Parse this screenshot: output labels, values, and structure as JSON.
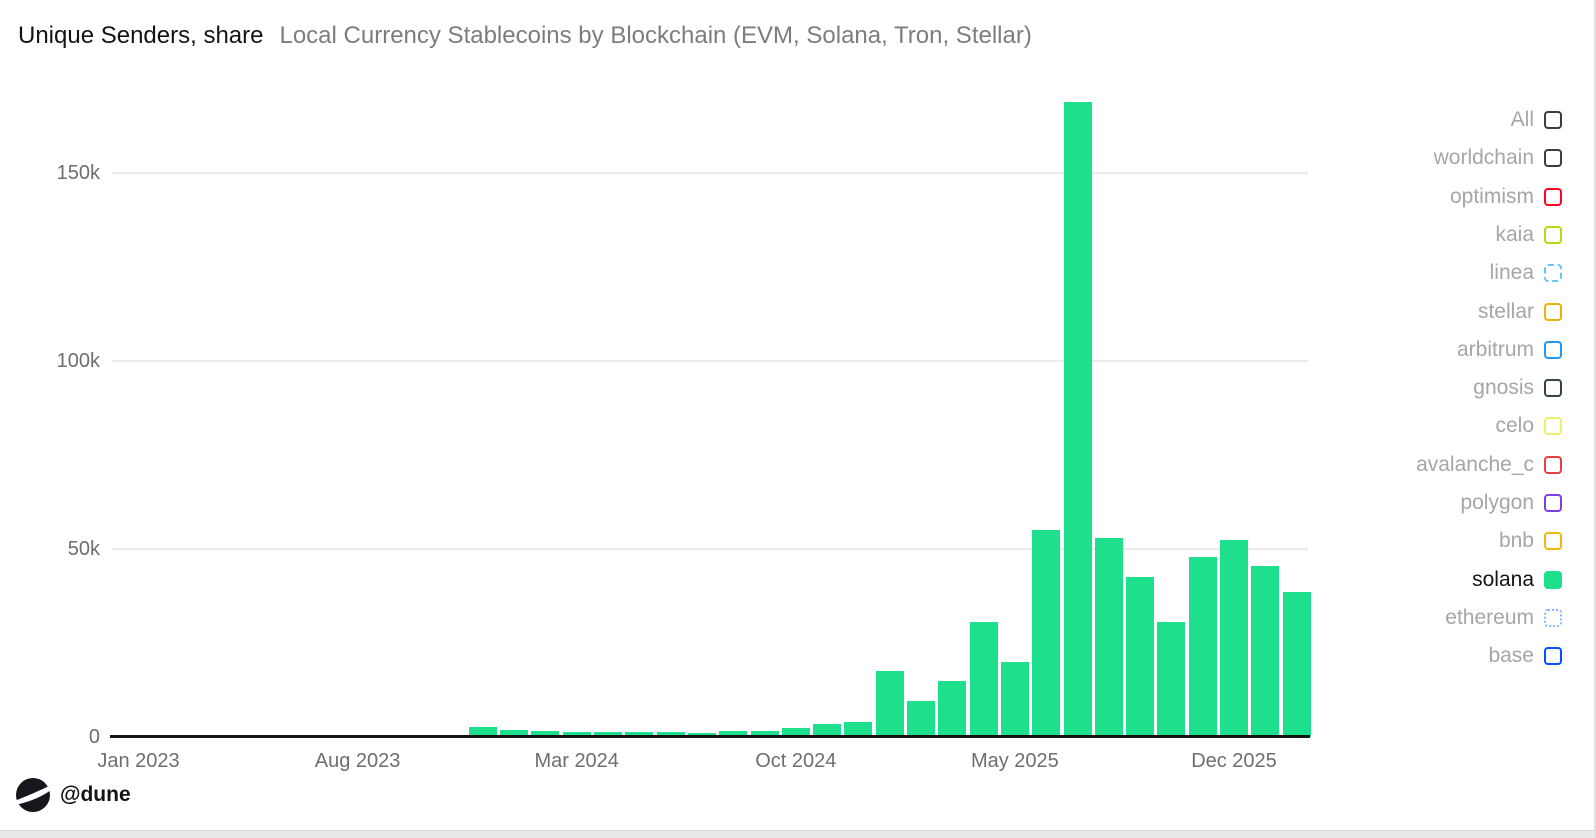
{
  "header": {
    "title": "Unique Senders, share",
    "subtitle": "Local Currency Stablecoins by Blockchain (EVM, Solana, Tron, Stellar)"
  },
  "footer": {
    "handle": "@dune",
    "logo_icon": "dune-logo"
  },
  "legend": {
    "items": [
      {
        "label": "All",
        "color": "#3d3d3d",
        "fill": false,
        "border_style": "solid",
        "active": false
      },
      {
        "label": "worldchain",
        "color": "#3d3d3d",
        "fill": false,
        "border_style": "solid",
        "active": false
      },
      {
        "label": "optimism",
        "color": "#ff0420",
        "fill": false,
        "border_style": "solid",
        "active": false
      },
      {
        "label": "kaia",
        "color": "#b5d80f",
        "fill": false,
        "border_style": "solid",
        "active": false
      },
      {
        "label": "linea",
        "color": "#5fc9f3",
        "fill": false,
        "border_style": "dashed",
        "active": false
      },
      {
        "label": "stellar",
        "color": "#eab308",
        "fill": false,
        "border_style": "solid",
        "active": false
      },
      {
        "label": "arbitrum",
        "color": "#1e9bf0",
        "fill": false,
        "border_style": "solid",
        "active": false
      },
      {
        "label": "gnosis",
        "color": "#30453d",
        "fill": false,
        "border_style": "solid",
        "active": false
      },
      {
        "label": "celo",
        "color": "#eff069",
        "fill": false,
        "border_style": "solid",
        "active": false
      },
      {
        "label": "avalanche_c",
        "color": "#e84142",
        "fill": false,
        "border_style": "solid",
        "active": false
      },
      {
        "label": "polygon",
        "color": "#7b3fe4",
        "fill": false,
        "border_style": "solid",
        "active": false
      },
      {
        "label": "bnb",
        "color": "#f0b90b",
        "fill": false,
        "border_style": "solid",
        "active": false
      },
      {
        "label": "solana",
        "color": "#1ee08c",
        "fill": true,
        "border_style": "solid",
        "active": true
      },
      {
        "label": "ethereum",
        "color": "#8ab4f8",
        "fill": false,
        "border_style": "dotted",
        "active": false
      },
      {
        "label": "base",
        "color": "#0052ff",
        "fill": false,
        "border_style": "solid",
        "active": false
      }
    ]
  },
  "chart_data": {
    "type": "bar",
    "title": "Unique Senders, share",
    "subtitle": "Local Currency Stablecoins by Blockchain (EVM, Solana, Tron, Stellar)",
    "series_name": "solana",
    "unit": "unique senders (thousands)",
    "bar_color": "#1ee08c",
    "grid": true,
    "legend_position": "right",
    "ylim_k": [
      0,
      172
    ],
    "y_ticks": [
      {
        "label": "0",
        "value_k": 0
      },
      {
        "label": "50k",
        "value_k": 50
      },
      {
        "label": "100k",
        "value_k": 100
      },
      {
        "label": "150k",
        "value_k": 150
      }
    ],
    "x_ticks": [
      {
        "label": "Jan 2023",
        "month_index": 0
      },
      {
        "label": "Aug 2023",
        "month_index": 7
      },
      {
        "label": "Mar 2024",
        "month_index": 14
      },
      {
        "label": "Oct 2024",
        "month_index": 21
      },
      {
        "label": "May 2025",
        "month_index": 28
      },
      {
        "label": "Dec 2025",
        "month_index": 35
      }
    ],
    "categories": [
      "Jan 2023",
      "Feb 2023",
      "Mar 2023",
      "Apr 2023",
      "May 2023",
      "Jun 2023",
      "Jul 2023",
      "Aug 2023",
      "Sep 2023",
      "Oct 2023",
      "Nov 2023",
      "Dec 2023",
      "Jan 2024",
      "Feb 2024",
      "Mar 2024",
      "Apr 2024",
      "May 2024",
      "Jun 2024",
      "Jul 2024",
      "Aug 2024",
      "Sep 2024",
      "Oct 2024",
      "Nov 2024",
      "Dec 2024",
      "Jan 2025",
      "Feb 2025",
      "Mar 2025",
      "Apr 2025",
      "May 2025",
      "Jun 2025",
      "Jul 2025",
      "Aug 2025",
      "Sep 2025",
      "Oct 2025",
      "Nov 2025",
      "Dec 2025",
      "Jan 2026",
      "Feb 2026"
    ],
    "values_k": [
      0,
      0,
      0,
      0,
      0,
      0,
      0,
      0.3,
      0.3,
      0.1,
      0.1,
      2.6,
      1.9,
      1.7,
      1.2,
      1.3,
      1.4,
      1.4,
      1.1,
      1.5,
      1.7,
      2.3,
      3.5,
      4.1,
      17.5,
      9.6,
      15,
      30.5,
      20,
      55,
      169,
      53,
      42.5,
      30.5,
      48,
      52.5,
      45.5,
      38.5
    ]
  }
}
